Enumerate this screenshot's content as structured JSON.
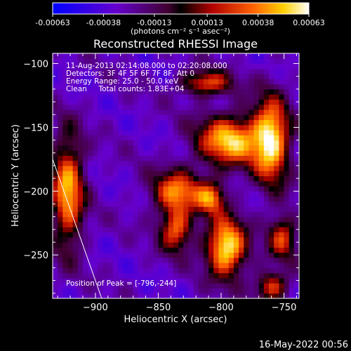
{
  "chart_data": {
    "type": "heatmap",
    "title": "Reconstructed RHESSI Image",
    "xlabel": "Heliocentric X (arcsec)",
    "ylabel": "Heliocentric Y (arcsec)",
    "xlim": [
      -934,
      -738
    ],
    "ylim": [
      -284,
      -92
    ],
    "x_ticks": [
      -900,
      -850,
      -800,
      -750
    ],
    "y_ticks": [
      -100,
      -150,
      -200,
      -250
    ],
    "colorbar": {
      "range": [
        -0.00063,
        0.00063
      ],
      "tick_values": [
        -0.00063,
        -0.00038,
        -0.00013,
        0.00013,
        0.00038,
        0.00063
      ],
      "tick_labels": [
        "-0.00063",
        "-0.00038",
        "-0.00013",
        "0.00013",
        "0.00038",
        "0.00063"
      ],
      "unit_label": "(photons cm⁻² s⁻¹ asec⁻²)"
    },
    "annotations": [
      "11-Aug-2013 02:14:08.000 to 02:20:08.000",
      "Detectors: 3F 4F 5F 6F 7F 8F, Att 0",
      "Energy Range: 25.0 - 50.0 keV",
      "Clean     Total counts: 1.83E+04"
    ],
    "peak_label": "Position of Peak = [-796,-244]",
    "peak": [
      -796,
      -244
    ],
    "emission_regions": [
      {
        "x": -796,
        "y": -244,
        "sx": 11,
        "sy": 16,
        "v": 0.00063
      },
      {
        "x": -793,
        "y": -160,
        "sx": 18,
        "sy": 14,
        "v": 0.00052
      },
      {
        "x": -760,
        "y": -160,
        "sx": 10,
        "sy": 24,
        "v": 0.00055
      },
      {
        "x": -835,
        "y": -200,
        "sx": 14,
        "sy": 12,
        "v": 0.00036
      },
      {
        "x": -836,
        "y": -230,
        "sx": 9,
        "sy": 12,
        "v": 0.00034
      },
      {
        "x": -922,
        "y": -200,
        "sx": 9,
        "sy": 30,
        "v": 0.00046
      },
      {
        "x": -812,
        "y": -115,
        "sx": 14,
        "sy": 7,
        "v": 0.0003
      },
      {
        "x": -808,
        "y": -205,
        "sx": 8,
        "sy": 9,
        "v": 0.0003
      },
      {
        "x": -751,
        "y": -236,
        "sx": 8,
        "sy": 12,
        "v": 0.00026
      },
      {
        "x": -760,
        "y": -275,
        "sx": 9,
        "sy": 8,
        "v": 0.00028
      }
    ],
    "background_level": -0.0003,
    "limb_line": {
      "from": [
        -934,
        -175
      ],
      "to": [
        -895,
        -284
      ]
    },
    "grid": false
  },
  "footer": {
    "date": "16-May-2022 00:56"
  },
  "colors": {
    "background": "#000000",
    "text": "#ffffff"
  }
}
